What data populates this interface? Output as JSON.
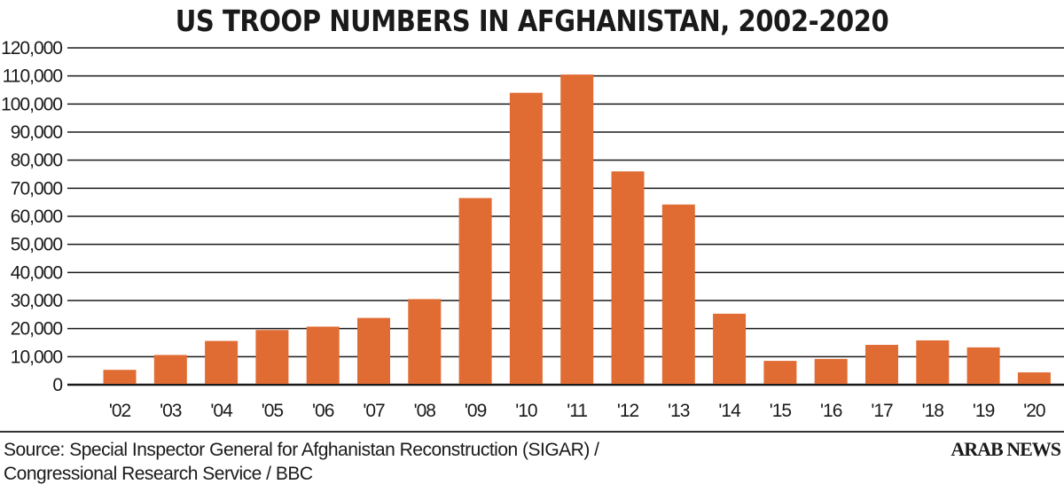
{
  "chart_data": {
    "type": "bar",
    "title": "US TROOP NUMBERS IN AFGHANISTAN, 2002-2020",
    "categories": [
      "'02",
      "'03",
      "'04",
      "'05",
      "'06",
      "'07",
      "'08",
      "'09",
      "'10",
      "'11",
      "'12",
      "'13",
      "'14",
      "'15",
      "'16",
      "'17",
      "'18",
      "'19",
      "'20"
    ],
    "values": [
      5300,
      10600,
      15600,
      19500,
      20700,
      23800,
      30500,
      66500,
      104000,
      110500,
      76000,
      64200,
      25300,
      8500,
      9200,
      14200,
      15800,
      13300,
      4400
    ],
    "ylim": [
      0,
      120000
    ],
    "yticks": [
      "0",
      "10,000",
      "20,000",
      "30,000",
      "40,000",
      "50,000",
      "60,000",
      "70,000",
      "80,000",
      "90,000",
      "100,000",
      "110,000",
      "120,000"
    ],
    "xlabel": "",
    "ylabel": "",
    "grid": true,
    "bar_color": "#e06c34"
  },
  "footer": {
    "source_line1": "Source: Special Inspector General for Afghanistan Reconstruction (SIGAR) /",
    "source_line2": "Congressional Research Service / BBC",
    "logo": "ARAB NEWS"
  }
}
